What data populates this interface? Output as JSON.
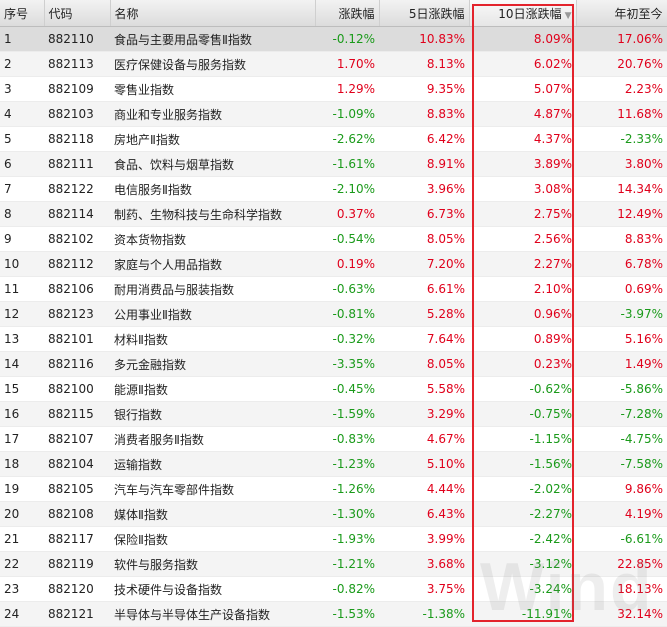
{
  "columns": [
    "序号",
    "代码",
    "名称",
    "涨跌幅",
    "5日涨跌幅",
    "10日涨跌幅",
    "年初至今"
  ],
  "rows": [
    {
      "no": "1",
      "code": "882110",
      "name": "食品与主要用品零售Ⅱ指数",
      "chg": "-0.12%",
      "chg5": "10.83%",
      "chg10": "8.09%",
      "ytd": "17.06%"
    },
    {
      "no": "2",
      "code": "882113",
      "name": "医疗保健设备与服务指数",
      "chg": "1.70%",
      "chg5": "8.13%",
      "chg10": "6.02%",
      "ytd": "20.76%"
    },
    {
      "no": "3",
      "code": "882109",
      "name": "零售业指数",
      "chg": "1.29%",
      "chg5": "9.35%",
      "chg10": "5.07%",
      "ytd": "2.23%"
    },
    {
      "no": "4",
      "code": "882103",
      "name": "商业和专业服务指数",
      "chg": "-1.09%",
      "chg5": "8.83%",
      "chg10": "4.87%",
      "ytd": "11.68%"
    },
    {
      "no": "5",
      "code": "882118",
      "name": "房地产Ⅱ指数",
      "chg": "-2.62%",
      "chg5": "6.42%",
      "chg10": "4.37%",
      "ytd": "-2.33%"
    },
    {
      "no": "6",
      "code": "882111",
      "name": "食品、饮料与烟草指数",
      "chg": "-1.61%",
      "chg5": "8.91%",
      "chg10": "3.89%",
      "ytd": "3.80%"
    },
    {
      "no": "7",
      "code": "882122",
      "name": "电信服务Ⅱ指数",
      "chg": "-2.10%",
      "chg5": "3.96%",
      "chg10": "3.08%",
      "ytd": "14.34%"
    },
    {
      "no": "8",
      "code": "882114",
      "name": "制药、生物科技与生命科学指数",
      "chg": "0.37%",
      "chg5": "6.73%",
      "chg10": "2.75%",
      "ytd": "12.49%"
    },
    {
      "no": "9",
      "code": "882102",
      "name": "资本货物指数",
      "chg": "-0.54%",
      "chg5": "8.05%",
      "chg10": "2.56%",
      "ytd": "8.83%"
    },
    {
      "no": "10",
      "code": "882112",
      "name": "家庭与个人用品指数",
      "chg": "0.19%",
      "chg5": "7.20%",
      "chg10": "2.27%",
      "ytd": "6.78%"
    },
    {
      "no": "11",
      "code": "882106",
      "name": "耐用消费品与服装指数",
      "chg": "-0.63%",
      "chg5": "6.61%",
      "chg10": "2.10%",
      "ytd": "0.69%"
    },
    {
      "no": "12",
      "code": "882123",
      "name": "公用事业Ⅱ指数",
      "chg": "-0.81%",
      "chg5": "5.28%",
      "chg10": "0.96%",
      "ytd": "-3.97%"
    },
    {
      "no": "13",
      "code": "882101",
      "name": "材料Ⅱ指数",
      "chg": "-0.32%",
      "chg5": "7.64%",
      "chg10": "0.89%",
      "ytd": "5.16%"
    },
    {
      "no": "14",
      "code": "882116",
      "name": "多元金融指数",
      "chg": "-3.35%",
      "chg5": "8.05%",
      "chg10": "0.23%",
      "ytd": "1.49%"
    },
    {
      "no": "15",
      "code": "882100",
      "name": "能源Ⅱ指数",
      "chg": "-0.45%",
      "chg5": "5.58%",
      "chg10": "-0.62%",
      "ytd": "-5.86%"
    },
    {
      "no": "16",
      "code": "882115",
      "name": "银行指数",
      "chg": "-1.59%",
      "chg5": "3.29%",
      "chg10": "-0.75%",
      "ytd": "-7.28%"
    },
    {
      "no": "17",
      "code": "882107",
      "name": "消费者服务Ⅱ指数",
      "chg": "-0.83%",
      "chg5": "4.67%",
      "chg10": "-1.15%",
      "ytd": "-4.75%"
    },
    {
      "no": "18",
      "code": "882104",
      "name": "运输指数",
      "chg": "-1.23%",
      "chg5": "5.10%",
      "chg10": "-1.56%",
      "ytd": "-7.58%"
    },
    {
      "no": "19",
      "code": "882105",
      "name": "汽车与汽车零部件指数",
      "chg": "-1.26%",
      "chg5": "4.44%",
      "chg10": "-2.02%",
      "ytd": "9.86%"
    },
    {
      "no": "20",
      "code": "882108",
      "name": "媒体Ⅱ指数",
      "chg": "-1.30%",
      "chg5": "6.43%",
      "chg10": "-2.27%",
      "ytd": "4.19%"
    },
    {
      "no": "21",
      "code": "882117",
      "name": "保险Ⅱ指数",
      "chg": "-1.93%",
      "chg5": "3.99%",
      "chg10": "-2.42%",
      "ytd": "-6.61%"
    },
    {
      "no": "22",
      "code": "882119",
      "name": "软件与服务指数",
      "chg": "-1.21%",
      "chg5": "3.68%",
      "chg10": "-3.12%",
      "ytd": "22.85%"
    },
    {
      "no": "23",
      "code": "882120",
      "name": "技术硬件与设备指数",
      "chg": "-0.82%",
      "chg5": "3.75%",
      "chg10": "-3.24%",
      "ytd": "18.13%"
    },
    {
      "no": "24",
      "code": "882121",
      "name": "半导体与半导体生产设备指数",
      "chg": "-1.53%",
      "chg5": "-1.38%",
      "chg10": "-11.91%",
      "ytd": "32.14%"
    }
  ],
  "selected_row": 0,
  "sorted_column": 5,
  "sort_direction": "descending",
  "colors": {
    "up": "#e0001b",
    "down": "#1a9a1a",
    "highlight": "#e3232c"
  },
  "icons": {
    "sort": "sort-desc-icon"
  },
  "watermark": "Wind"
}
